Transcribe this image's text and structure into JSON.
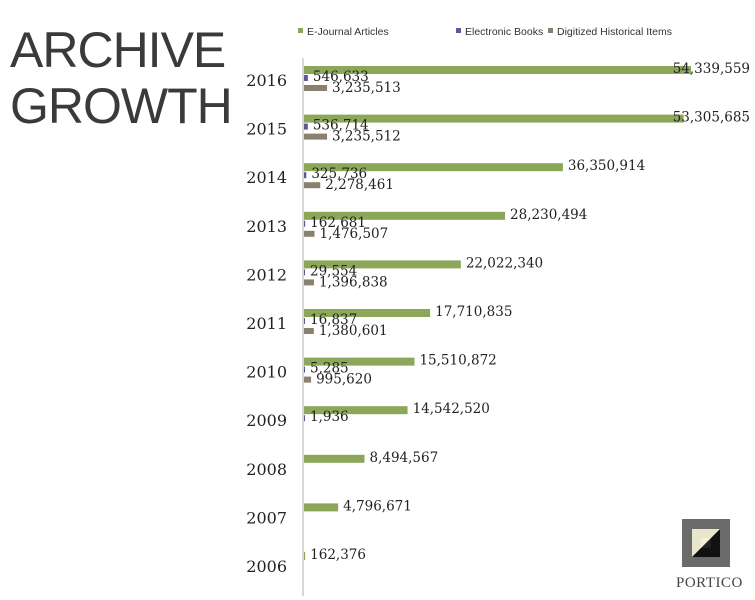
{
  "title": {
    "line1": "ARCHIVE",
    "line2": "GROWTH"
  },
  "logo_text": "PORTICO",
  "colors": {
    "ejournal": "#8ba75a",
    "ebooks": "#5a5a9a",
    "digitized": "#8a8070",
    "logo_bg": "#6b6b6b"
  },
  "chart_data": {
    "type": "bar",
    "orientation": "horizontal",
    "categories": [
      "2016",
      "2015",
      "2014",
      "2013",
      "2012",
      "2011",
      "2010",
      "2009",
      "2008",
      "2007",
      "2006"
    ],
    "series": [
      {
        "name": "E-Journal Articles",
        "color": "#8ba75a",
        "values": [
          54339559,
          53305685,
          36350914,
          28230494,
          22022340,
          17710835,
          15510872,
          14542520,
          8494567,
          4796671,
          162376
        ],
        "labels": [
          "54,339,559",
          "53,305,685",
          "36,350,914",
          "28,230,494",
          "22,022,340",
          "17,710,835",
          "15,510,872",
          "14,542,520",
          "8,494,567",
          "4,796,671",
          "162,376"
        ]
      },
      {
        "name": "Electronic Books",
        "color": "#5a5a9a",
        "values": [
          546633,
          536714,
          325736,
          162681,
          29554,
          16837,
          5285,
          1936,
          null,
          null,
          null
        ],
        "labels": [
          "546,633",
          "536,714",
          "325,736",
          "162,681",
          "29,554",
          "16,837",
          "5,285",
          "1,936",
          "",
          "",
          ""
        ]
      },
      {
        "name": "Digitized Historical Items",
        "color": "#8a8070",
        "values": [
          3235513,
          3235512,
          2278461,
          1476507,
          1396838,
          1380601,
          995620,
          null,
          null,
          null,
          null
        ],
        "labels": [
          "3,235,513",
          "3,235,512",
          "2,278,461",
          "1,476,507",
          "1,396,838",
          "1,380,601",
          "995,620",
          "",
          "",
          "",
          ""
        ]
      }
    ],
    "legend_position": "top",
    "xlim": [
      0,
      54339559
    ]
  }
}
